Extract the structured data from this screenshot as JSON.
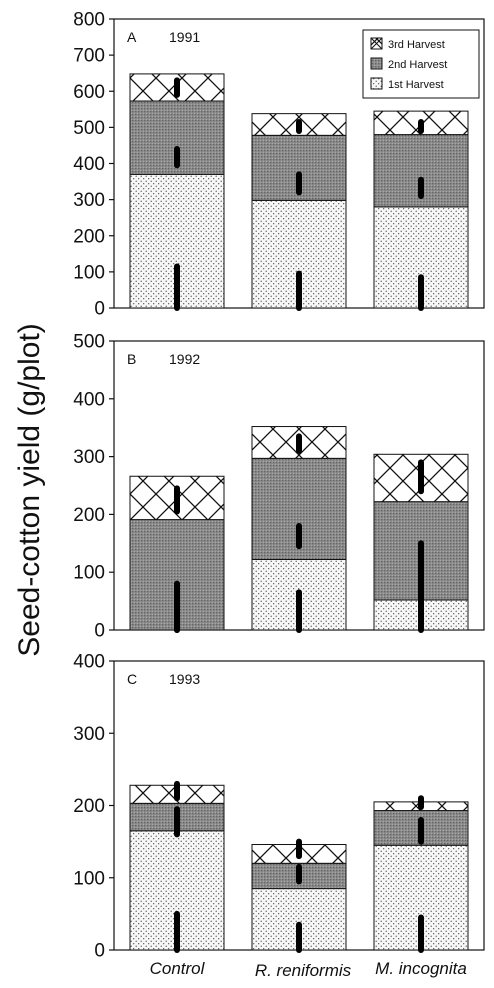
{
  "ylabel": "Seed-cotton yield (g/plot)",
  "x_axis_sublabel": "R. reniformis",
  "legend": [
    {
      "label": "3rd Harvest",
      "pattern": "crosshatch"
    },
    {
      "label": "2nd Harvest",
      "pattern": "dense-stipple"
    },
    {
      "label": "1st Harvest",
      "pattern": "light-stipple"
    }
  ],
  "colors": {
    "stroke": "#111111",
    "light_stipple": "#f7f7f7",
    "dense_stipple": "#8c8c8c",
    "error_bar": "#000000"
  },
  "chart_data": [
    {
      "type": "bar",
      "stacked": true,
      "panel": "A",
      "year": "1991",
      "categories": [
        "Control",
        "",
        "M. incognita"
      ],
      "series": [
        {
          "name": "1st Harvest",
          "values": [
            370,
            298,
            280
          ]
        },
        {
          "name": "2nd Harvest",
          "values": [
            203,
            180,
            200
          ]
        },
        {
          "name": "3rd Harvest",
          "values": [
            75,
            60,
            65
          ]
        }
      ],
      "error_bars": {
        "1st Harvest": [
          [
            0,
            115
          ],
          [
            0,
            95
          ],
          [
            0,
            85
          ]
        ],
        "2nd Harvest": [
          [
            395,
            440
          ],
          [
            320,
            370
          ],
          [
            310,
            355
          ]
        ],
        "3rd Harvest": [
          [
            590,
            630
          ],
          [
            490,
            515
          ],
          [
            490,
            515
          ]
        ]
      },
      "ylim": [
        0,
        800
      ],
      "yticks": [
        0,
        100,
        200,
        300,
        400,
        500,
        600,
        700,
        800
      ],
      "grid": false,
      "legend_position": "top-right"
    },
    {
      "type": "bar",
      "stacked": true,
      "panel": "B",
      "year": "1992",
      "categories": [
        "Control",
        "",
        "M. incognita"
      ],
      "series": [
        {
          "name": "1st Harvest",
          "values": [
            0,
            122,
            52
          ]
        },
        {
          "name": "2nd Harvest",
          "values": [
            191,
            175,
            170
          ]
        },
        {
          "name": "3rd Harvest",
          "values": [
            75,
            55,
            82
          ]
        }
      ],
      "error_bars": {
        "1st Harvest": [
          [
            0,
            80
          ],
          [
            0,
            65
          ],
          [
            0,
            55
          ]
        ],
        "2nd Harvest": [
          [
            0,
            80
          ],
          [
            145,
            180
          ],
          [
            55,
            150
          ]
        ],
        "3rd Harvest": [
          [
            205,
            245
          ],
          [
            310,
            335
          ],
          [
            240,
            290
          ]
        ]
      },
      "ylim": [
        0,
        500
      ],
      "yticks": [
        0,
        100,
        200,
        300,
        400,
        500
      ],
      "grid": false
    },
    {
      "type": "bar",
      "stacked": true,
      "panel": "C",
      "year": "1993",
      "categories": [
        "Control",
        "",
        "M. incognita"
      ],
      "series": [
        {
          "name": "1st Harvest",
          "values": [
            165,
            85,
            145
          ]
        },
        {
          "name": "2nd Harvest",
          "values": [
            38,
            35,
            48
          ]
        },
        {
          "name": "3rd Harvest",
          "values": [
            25,
            26,
            12
          ]
        }
      ],
      "error_bars": {
        "1st Harvest": [
          [
            0,
            50
          ],
          [
            0,
            35
          ],
          [
            0,
            45
          ]
        ],
        "2nd Harvest": [
          [
            160,
            195
          ],
          [
            95,
            115
          ],
          [
            150,
            180
          ]
        ],
        "3rd Harvest": [
          [
            210,
            230
          ],
          [
            130,
            150
          ],
          [
            198,
            210
          ]
        ]
      },
      "ylim": [
        0,
        400
      ],
      "yticks": [
        0,
        100,
        200,
        300,
        400
      ],
      "grid": false
    }
  ]
}
